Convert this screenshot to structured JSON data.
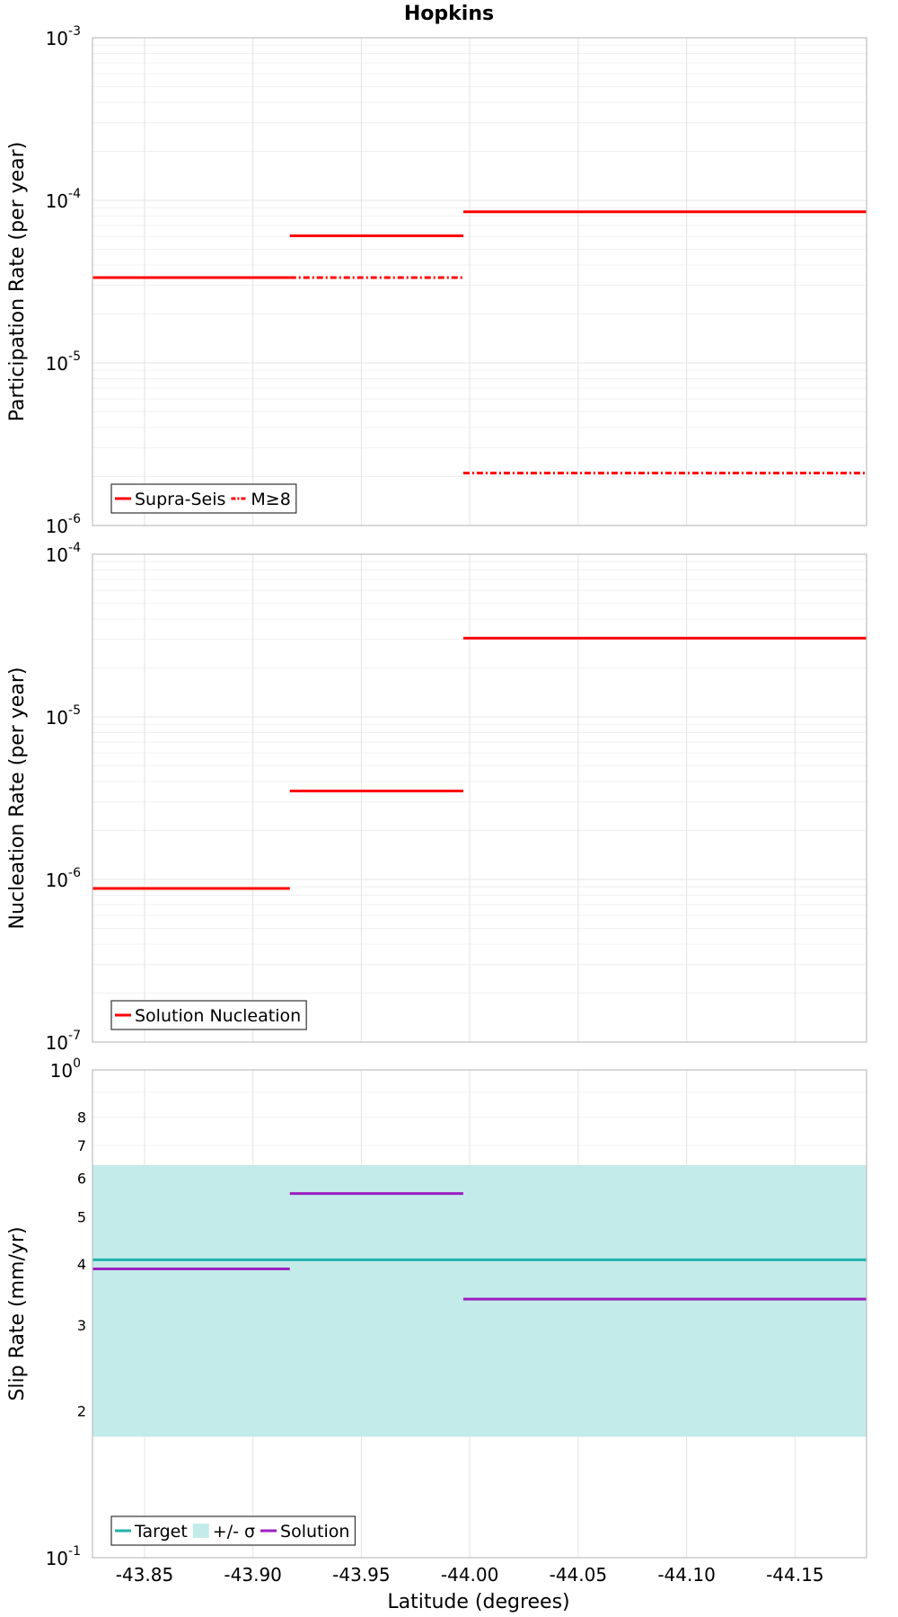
{
  "title": "Hopkins",
  "xlabel": "Latitude (degrees)",
  "x_axis": {
    "range": [
      -43.826,
      -44.183
    ],
    "ticks": [
      -43.85,
      -43.9,
      -43.95,
      -44.0,
      -44.05,
      -44.1,
      -44.15
    ],
    "tick_labels": [
      "-43.85",
      "-43.90",
      "-43.95",
      "-44.00",
      "-44.05",
      "-44.10",
      "-44.15"
    ]
  },
  "colors": {
    "red": "#ff0000",
    "teal": "#20b2aa",
    "band": "#c3ebea",
    "purple": "#9b1fbf"
  },
  "chart_data": [
    {
      "type": "line",
      "name": "participation",
      "ylabel": "Participation Rate (per year)",
      "yscale": "log",
      "ylim": [
        1e-06,
        0.001
      ],
      "major_ticks": [
        {
          "value": 0.001,
          "base": "10",
          "exp": "-3"
        },
        {
          "value": 0.0001,
          "base": "10",
          "exp": "-4"
        },
        {
          "value": 1e-05,
          "base": "10",
          "exp": "-5"
        },
        {
          "value": 1e-06,
          "base": "10",
          "exp": "-6"
        }
      ],
      "legend": {
        "items": [
          {
            "label": "Supra-Seis",
            "style": "solid",
            "color": "#ff0000"
          },
          {
            "label": "M≥8",
            "style": "dashdot",
            "color": "#ff0000"
          }
        ]
      },
      "series": [
        {
          "name": "Supra-Seis",
          "style": "solid",
          "color": "#ff0000",
          "segments": [
            {
              "x0": -43.826,
              "x1": -43.917,
              "y": 3.35e-05
            },
            {
              "x0": -43.917,
              "x1": -43.997,
              "y": 6.05e-05
            },
            {
              "x0": -43.997,
              "x1": -44.183,
              "y": 8.5e-05
            }
          ]
        },
        {
          "name": "M≥8",
          "style": "dashdot",
          "color": "#ff0000",
          "segments": [
            {
              "x0": -43.826,
              "x1": -43.917,
              "y": 3.35e-05
            },
            {
              "x0": -43.917,
              "x1": -43.997,
              "y": 3.35e-05
            },
            {
              "x0": -43.997,
              "x1": -44.183,
              "y": 2.1e-06
            }
          ]
        }
      ]
    },
    {
      "type": "line",
      "name": "nucleation",
      "ylabel": "Nucleation Rate (per year)",
      "yscale": "log",
      "ylim": [
        1e-07,
        0.0001
      ],
      "major_ticks": [
        {
          "value": 0.0001,
          "base": "10",
          "exp": "-4"
        },
        {
          "value": 1e-05,
          "base": "10",
          "exp": "-5"
        },
        {
          "value": 1e-06,
          "base": "10",
          "exp": "-6"
        },
        {
          "value": 1e-07,
          "base": "10",
          "exp": "-7"
        }
      ],
      "legend": {
        "items": [
          {
            "label": "Solution Nucleation",
            "style": "solid",
            "color": "#ff0000"
          }
        ]
      },
      "series": [
        {
          "name": "Solution Nucleation",
          "style": "solid",
          "color": "#ff0000",
          "segments": [
            {
              "x0": -43.826,
              "x1": -43.917,
              "y": 8.8e-07
            },
            {
              "x0": -43.917,
              "x1": -43.997,
              "y": 3.5e-06
            },
            {
              "x0": -43.997,
              "x1": -44.183,
              "y": 3.05e-05
            }
          ]
        }
      ]
    },
    {
      "type": "line",
      "name": "slip",
      "ylabel": "Slip Rate (mm/yr)",
      "yscale": "log",
      "ylim": [
        0.1,
        1.0
      ],
      "major_ticks": [
        {
          "value": 1.0,
          "base": "10",
          "exp": "0"
        },
        {
          "value": 0.1,
          "base": "10",
          "exp": "-1"
        }
      ],
      "minor_ticks": [
        {
          "value": 0.2,
          "label": "2"
        },
        {
          "value": 0.3,
          "label": "3"
        },
        {
          "value": 0.4,
          "label": "4"
        },
        {
          "value": 0.5,
          "label": "5"
        },
        {
          "value": 0.6,
          "label": "6"
        },
        {
          "value": 0.7,
          "label": "7"
        },
        {
          "value": 0.8,
          "label": "8"
        }
      ],
      "band": {
        "name": "+/- σ",
        "y0": 0.177,
        "y1": 0.638,
        "color": "#c3ebea"
      },
      "legend": {
        "items": [
          {
            "label": "Target",
            "style": "solid",
            "color": "#20b2aa"
          },
          {
            "label": "+/- σ",
            "style": "band",
            "color": "#c3ebea"
          },
          {
            "label": "Solution",
            "style": "solid",
            "color": "#9b1fbf"
          }
        ]
      },
      "series": [
        {
          "name": "Target",
          "style": "solid",
          "color": "#20b2aa",
          "segments": [
            {
              "x0": -43.826,
              "x1": -44.183,
              "y": 0.408
            }
          ]
        },
        {
          "name": "Solution",
          "style": "solid",
          "color": "#9b1fbf",
          "segments": [
            {
              "x0": -43.826,
              "x1": -43.917,
              "y": 0.391
            },
            {
              "x0": -43.917,
              "x1": -43.997,
              "y": 0.558
            },
            {
              "x0": -43.997,
              "x1": -44.183,
              "y": 0.339
            }
          ]
        }
      ]
    }
  ]
}
